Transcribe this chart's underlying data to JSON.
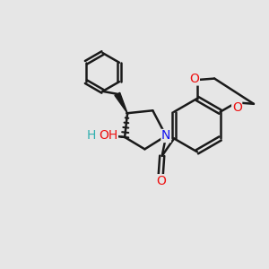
{
  "background_color": "#e6e6e6",
  "bond_color": "#1a1a1a",
  "bond_width": 1.8,
  "atom_colors": {
    "N": "#1010ee",
    "O": "#ee1010",
    "H": "#30b0b0",
    "C": "#1a1a1a"
  },
  "font_size_atom": 10,
  "figsize": [
    3.0,
    3.0
  ],
  "dpi": 100
}
